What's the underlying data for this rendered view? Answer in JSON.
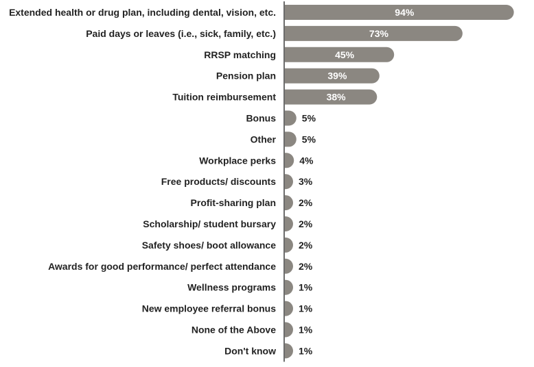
{
  "chart_data": {
    "type": "bar",
    "orientation": "horizontal",
    "categories": [
      "Extended health or drug plan, including dental, vision, etc.",
      "Paid days or leaves (i.e., sick, family, etc.)",
      "RRSP matching",
      "Pension plan",
      "Tuition reimbursement",
      "Bonus",
      "Other",
      "Workplace perks",
      "Free products/ discounts",
      "Profit-sharing plan",
      "Scholarship/ student bursary",
      "Safety shoes/ boot allowance",
      "Awards for good performance/ perfect attendance",
      "Wellness programs",
      "New employee referral bonus",
      "None of the Above",
      "Don't know"
    ],
    "values": [
      94,
      73,
      45,
      39,
      38,
      5,
      5,
      4,
      3,
      2,
      2,
      2,
      2,
      1,
      1,
      1,
      1
    ],
    "value_labels": [
      "94%",
      "73%",
      "45%",
      "39%",
      "38%",
      "5%",
      "5%",
      "4%",
      "3%",
      "2%",
      "2%",
      "2%",
      "2%",
      "1%",
      "1%",
      "1%",
      "1%"
    ],
    "unit": "%",
    "xlim": [
      0,
      100
    ],
    "grid": false,
    "legend": "none",
    "colors": {
      "bar": "#8b8781",
      "axis": "#6b6b6b",
      "label_inside": "#ffffff",
      "label_outside": "#222222"
    }
  }
}
